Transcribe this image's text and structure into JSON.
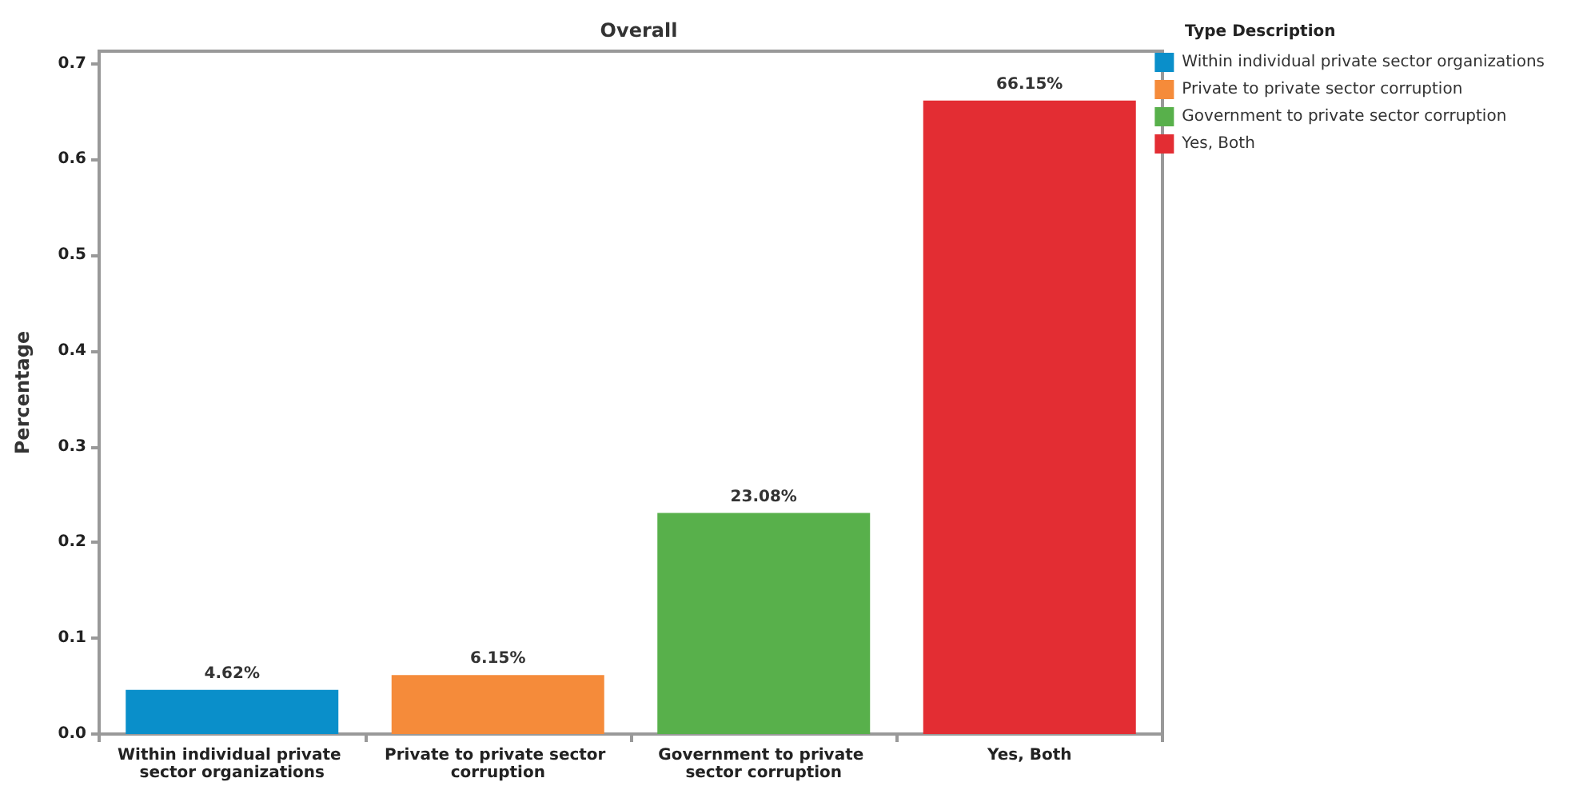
{
  "chart_data": {
    "type": "bar",
    "title": "Overall",
    "ylabel": "Percentage",
    "legend_title": "Type Description",
    "categories": [
      "Within individual private sector organizations",
      "Private to private sector corruption",
      "Government to private sector corruption",
      "Yes, Both"
    ],
    "series": [
      {
        "name": "Within individual private sector organizations",
        "color": "#0a8fca",
        "values": [
          0.0462,
          null,
          null,
          null
        ],
        "value_labels": [
          "4.62%",
          null,
          null,
          null
        ]
      },
      {
        "name": "Private to private sector corruption",
        "color": "#f58b3a",
        "values": [
          null,
          0.0615,
          null,
          null
        ],
        "value_labels": [
          null,
          "6.15%",
          null,
          null
        ]
      },
      {
        "name": "Government to private sector corruption",
        "color": "#58b04b",
        "values": [
          null,
          null,
          0.2308,
          null
        ],
        "value_labels": [
          null,
          null,
          "23.08%",
          null
        ]
      },
      {
        "name": "Yes, Both",
        "color": "#e32d33",
        "values": [
          null,
          null,
          null,
          0.6615
        ],
        "value_labels": [
          null,
          null,
          null,
          "66.15%"
        ]
      }
    ],
    "ylim": [
      0,
      0.713
    ],
    "yticks": [
      {
        "value": 0,
        "label": "0.0"
      },
      0.1,
      0.2,
      0.3,
      0.4,
      0.5,
      0.6,
      0.7
    ],
    "grid": false,
    "legend": "right"
  }
}
